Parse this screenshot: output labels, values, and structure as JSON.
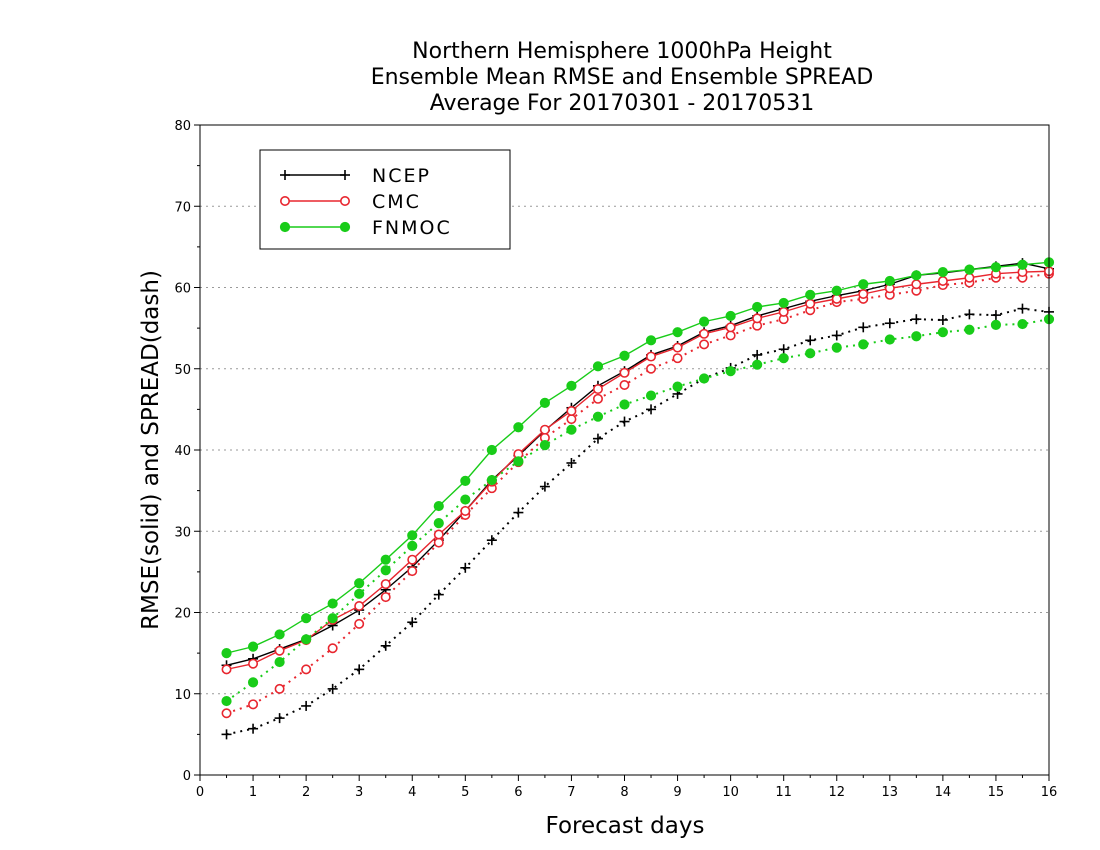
{
  "chart_data": {
    "type": "line",
    "title": [
      "Northern Hemisphere 1000hPa Height",
      "Ensemble Mean RMSE and Ensemble SPREAD",
      "Average For 20170301 - 20170531"
    ],
    "xlabel": "Forecast days",
    "ylabel": "RMSE(solid) and SPREAD(dash)",
    "xlim": [
      0,
      16
    ],
    "ylim": [
      0,
      80
    ],
    "xticks": [
      "0",
      "1",
      "2",
      "3",
      "4",
      "5",
      "6",
      "7",
      "8",
      "9",
      "10",
      "11",
      "12",
      "13",
      "14",
      "15",
      "16"
    ],
    "yticks": [
      "0",
      "10",
      "20",
      "30",
      "40",
      "50",
      "60",
      "70",
      "80"
    ],
    "grid": "horizontal dotted",
    "legend_position": "top-left",
    "x": [
      0.5,
      1,
      1.5,
      2,
      2.5,
      3,
      3.5,
      4,
      4.5,
      5,
      5.5,
      6,
      6.5,
      7,
      7.5,
      8,
      8.5,
      9,
      9.5,
      10,
      10.5,
      11,
      11.5,
      12,
      12.5,
      13,
      13.5,
      14,
      14.5,
      15,
      15.5,
      16
    ],
    "series": [
      {
        "name": "NCEP",
        "color": "#000000",
        "marker": "plus",
        "rmse": [
          13.5,
          14.3,
          15.5,
          16.7,
          18.4,
          20.3,
          22.8,
          25.6,
          28.9,
          32.5,
          36.3,
          39.3,
          42.4,
          45.2,
          47.9,
          49.7,
          51.7,
          52.8,
          54.5,
          55.3,
          56.5,
          57.4,
          58.3,
          59.0,
          59.6,
          60.4,
          61.5,
          61.8,
          62.2,
          62.6,
          63.0,
          62.3
        ],
        "spread": [
          5.0,
          5.7,
          7.0,
          8.5,
          10.6,
          13.0,
          15.9,
          18.8,
          22.2,
          25.5,
          28.9,
          32.3,
          35.5,
          38.4,
          41.4,
          43.5,
          45.0,
          46.9,
          48.8,
          50.1,
          51.7,
          52.4,
          53.5,
          54.1,
          55.1,
          55.6,
          56.1,
          56.0,
          56.7,
          56.6,
          57.4,
          57.0
        ]
      },
      {
        "name": "CMC",
        "color": "#e8262f",
        "marker": "circle",
        "rmse": [
          13.0,
          13.7,
          15.3,
          16.6,
          19.1,
          20.8,
          23.5,
          26.5,
          29.6,
          32.5,
          36.1,
          39.5,
          42.5,
          44.8,
          47.5,
          49.5,
          51.5,
          52.6,
          54.3,
          55.1,
          56.2,
          57.0,
          58.0,
          58.6,
          59.2,
          59.9,
          60.4,
          60.8,
          61.2,
          61.7,
          61.9,
          62.0
        ],
        "spread": [
          7.6,
          8.7,
          10.6,
          13.0,
          15.6,
          18.6,
          21.9,
          25.1,
          28.6,
          32.0,
          35.3,
          38.5,
          41.5,
          43.8,
          46.3,
          48.0,
          50.0,
          51.3,
          53.0,
          54.1,
          55.3,
          56.1,
          57.2,
          58.2,
          58.6,
          59.1,
          59.6,
          60.3,
          60.6,
          61.2,
          61.2,
          61.7
        ]
      },
      {
        "name": "FNMOC",
        "color": "#19cc19",
        "marker": "filled-circle",
        "rmse": [
          15.0,
          15.8,
          17.3,
          19.3,
          21.1,
          23.6,
          26.5,
          29.5,
          33.1,
          36.2,
          40.0,
          42.8,
          45.8,
          47.9,
          50.3,
          51.6,
          53.5,
          54.5,
          55.8,
          56.5,
          57.6,
          58.1,
          59.1,
          59.6,
          60.4,
          60.8,
          61.5,
          61.9,
          62.2,
          62.5,
          62.8,
          63.1
        ],
        "spread": [
          9.1,
          11.4,
          13.9,
          16.7,
          19.3,
          22.3,
          25.2,
          28.2,
          31.0,
          33.9,
          36.3,
          38.6,
          40.6,
          42.5,
          44.1,
          45.6,
          46.7,
          47.8,
          48.8,
          49.7,
          50.5,
          51.3,
          51.9,
          52.6,
          53.0,
          53.6,
          54.0,
          54.5,
          54.8,
          55.4,
          55.5,
          56.1
        ]
      }
    ]
  }
}
